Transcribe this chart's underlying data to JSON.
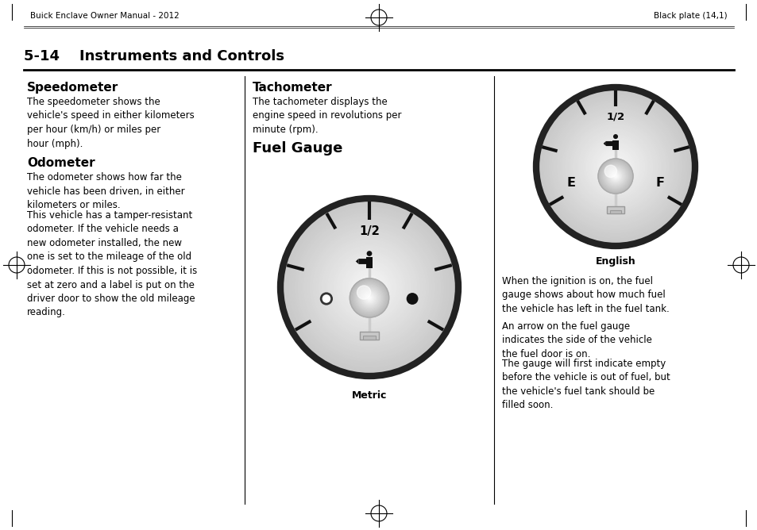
{
  "page_header_left": "Buick Enclave Owner Manual - 2012",
  "page_header_right": "Black plate (14,1)",
  "section_title": "5-14    Instruments and Controls",
  "col1_title": "Speedometer",
  "col1_para1": "The speedometer shows the\nvehicle's speed in either kilometers\nper hour (km/h) or miles per\nhour (mph).",
  "col1_title2": "Odometer",
  "col1_para2": "The odometer shows how far the\nvehicle has been driven, in either\nkilometers or miles.",
  "col1_para3": "This vehicle has a tamper-resistant\nodometer. If the vehicle needs a\nnew odometer installed, the new\none is set to the mileage of the old\nodometer. If this is not possible, it is\nset at zero and a label is put on the\ndriver door to show the old mileage\nreading.",
  "col2_title": "Tachometer",
  "col2_para1": "The tachometer displays the\nengine speed in revolutions per\nminute (rpm).",
  "col2_title2": "Fuel Gauge",
  "col2_caption": "Metric",
  "col3_caption": "English",
  "col3_para1": "When the ignition is on, the fuel\ngauge shows about how much fuel\nthe vehicle has left in the fuel tank.",
  "col3_para2": "An arrow on the fuel gauge\nindicates the side of the vehicle\nthe fuel door is on.",
  "col3_para3": "The gauge will first indicate empty\nbefore the vehicle is out of fuel, but\nthe vehicle's fuel tank should be\nfilled soon.",
  "bg_color": "#ffffff",
  "text_color": "#000000"
}
